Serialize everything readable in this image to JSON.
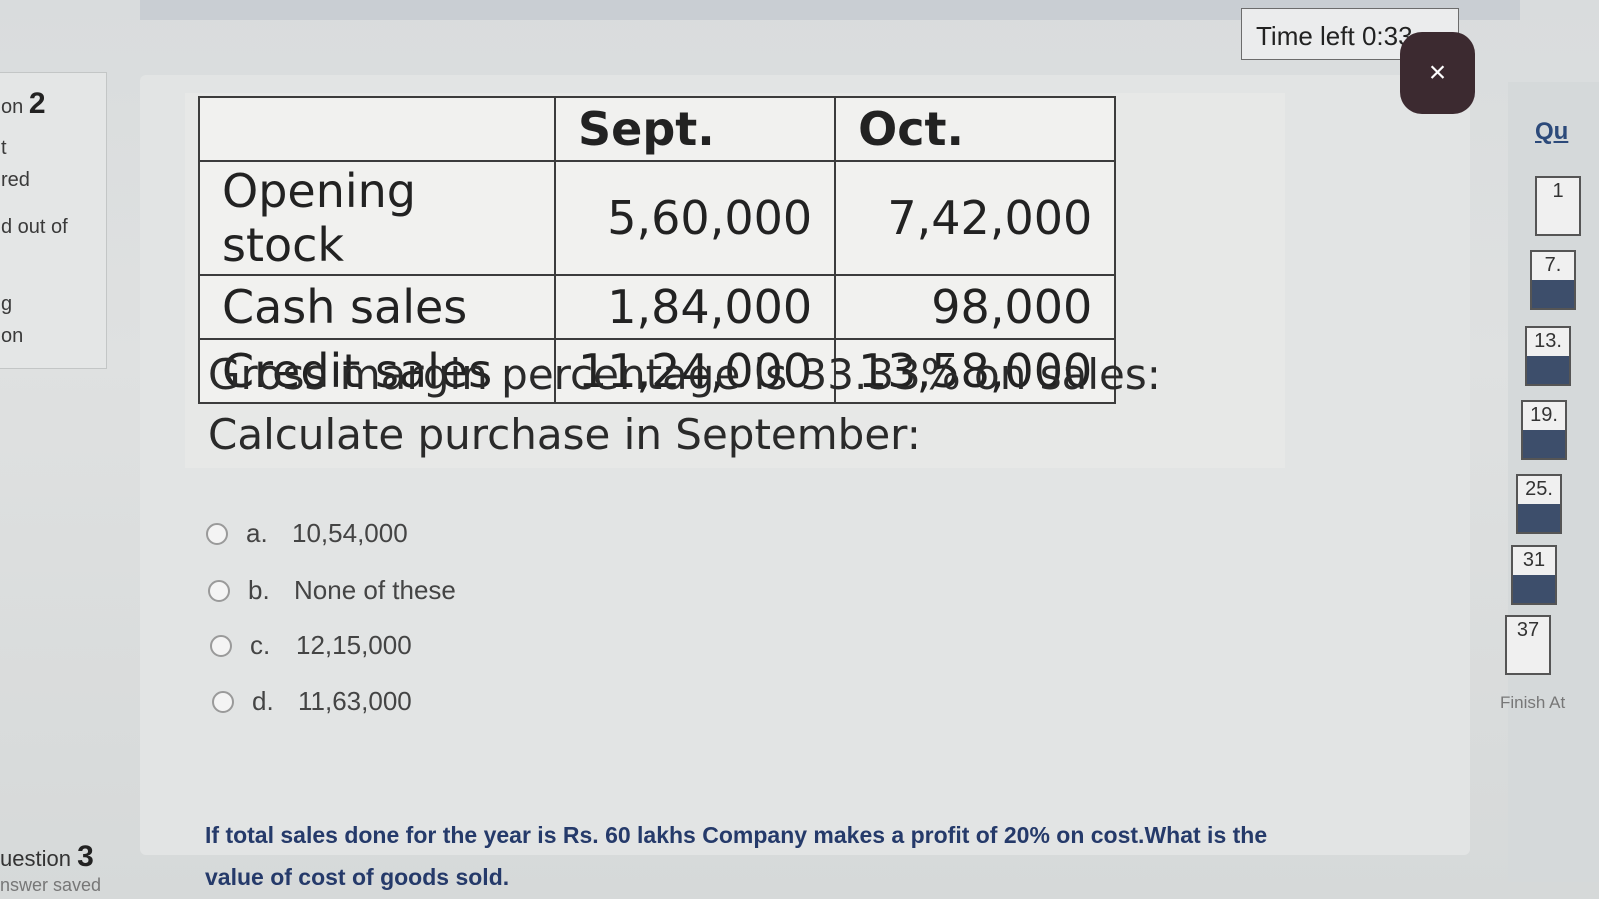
{
  "left_panel": {
    "question_label": "on",
    "question_number": "2",
    "line1": "t",
    "line2": "red",
    "line3": "d out of",
    "line4": "g",
    "line5": "on"
  },
  "timer": {
    "label": "Time left 0:33"
  },
  "close_icon": "×",
  "question": {
    "table": {
      "headers": [
        "",
        "Sept.",
        "Oct."
      ],
      "rows": [
        [
          "Opening stock",
          "5,60,000",
          "7,42,000"
        ],
        [
          "Cash sales",
          "1,84,000",
          "98,000"
        ],
        [
          "Credit sales",
          "11,24,000",
          "13,58,000"
        ]
      ]
    },
    "line1": "Gross margin percentage is 33.33% on sales:",
    "line2": "Calculate purchase in September:"
  },
  "options": [
    {
      "letter": "a.",
      "text": "10,54,000"
    },
    {
      "letter": "b.",
      "text": "None of these"
    },
    {
      "letter": "c.",
      "text": "12,15,000"
    },
    {
      "letter": "d.",
      "text": "11,63,000"
    }
  ],
  "nav": {
    "title": "Qu",
    "items": [
      "1",
      "7.",
      "13.",
      "19.",
      "25.",
      "31",
      "37"
    ],
    "finish": "Finish At"
  },
  "next_question": {
    "label": "uestion",
    "number": "3",
    "status": "nswer saved",
    "text1": "If total sales done for the year is Rs. 60 lakhs Company makes a profit of 20% on cost.What is the",
    "text2": "value of cost of goods sold."
  }
}
